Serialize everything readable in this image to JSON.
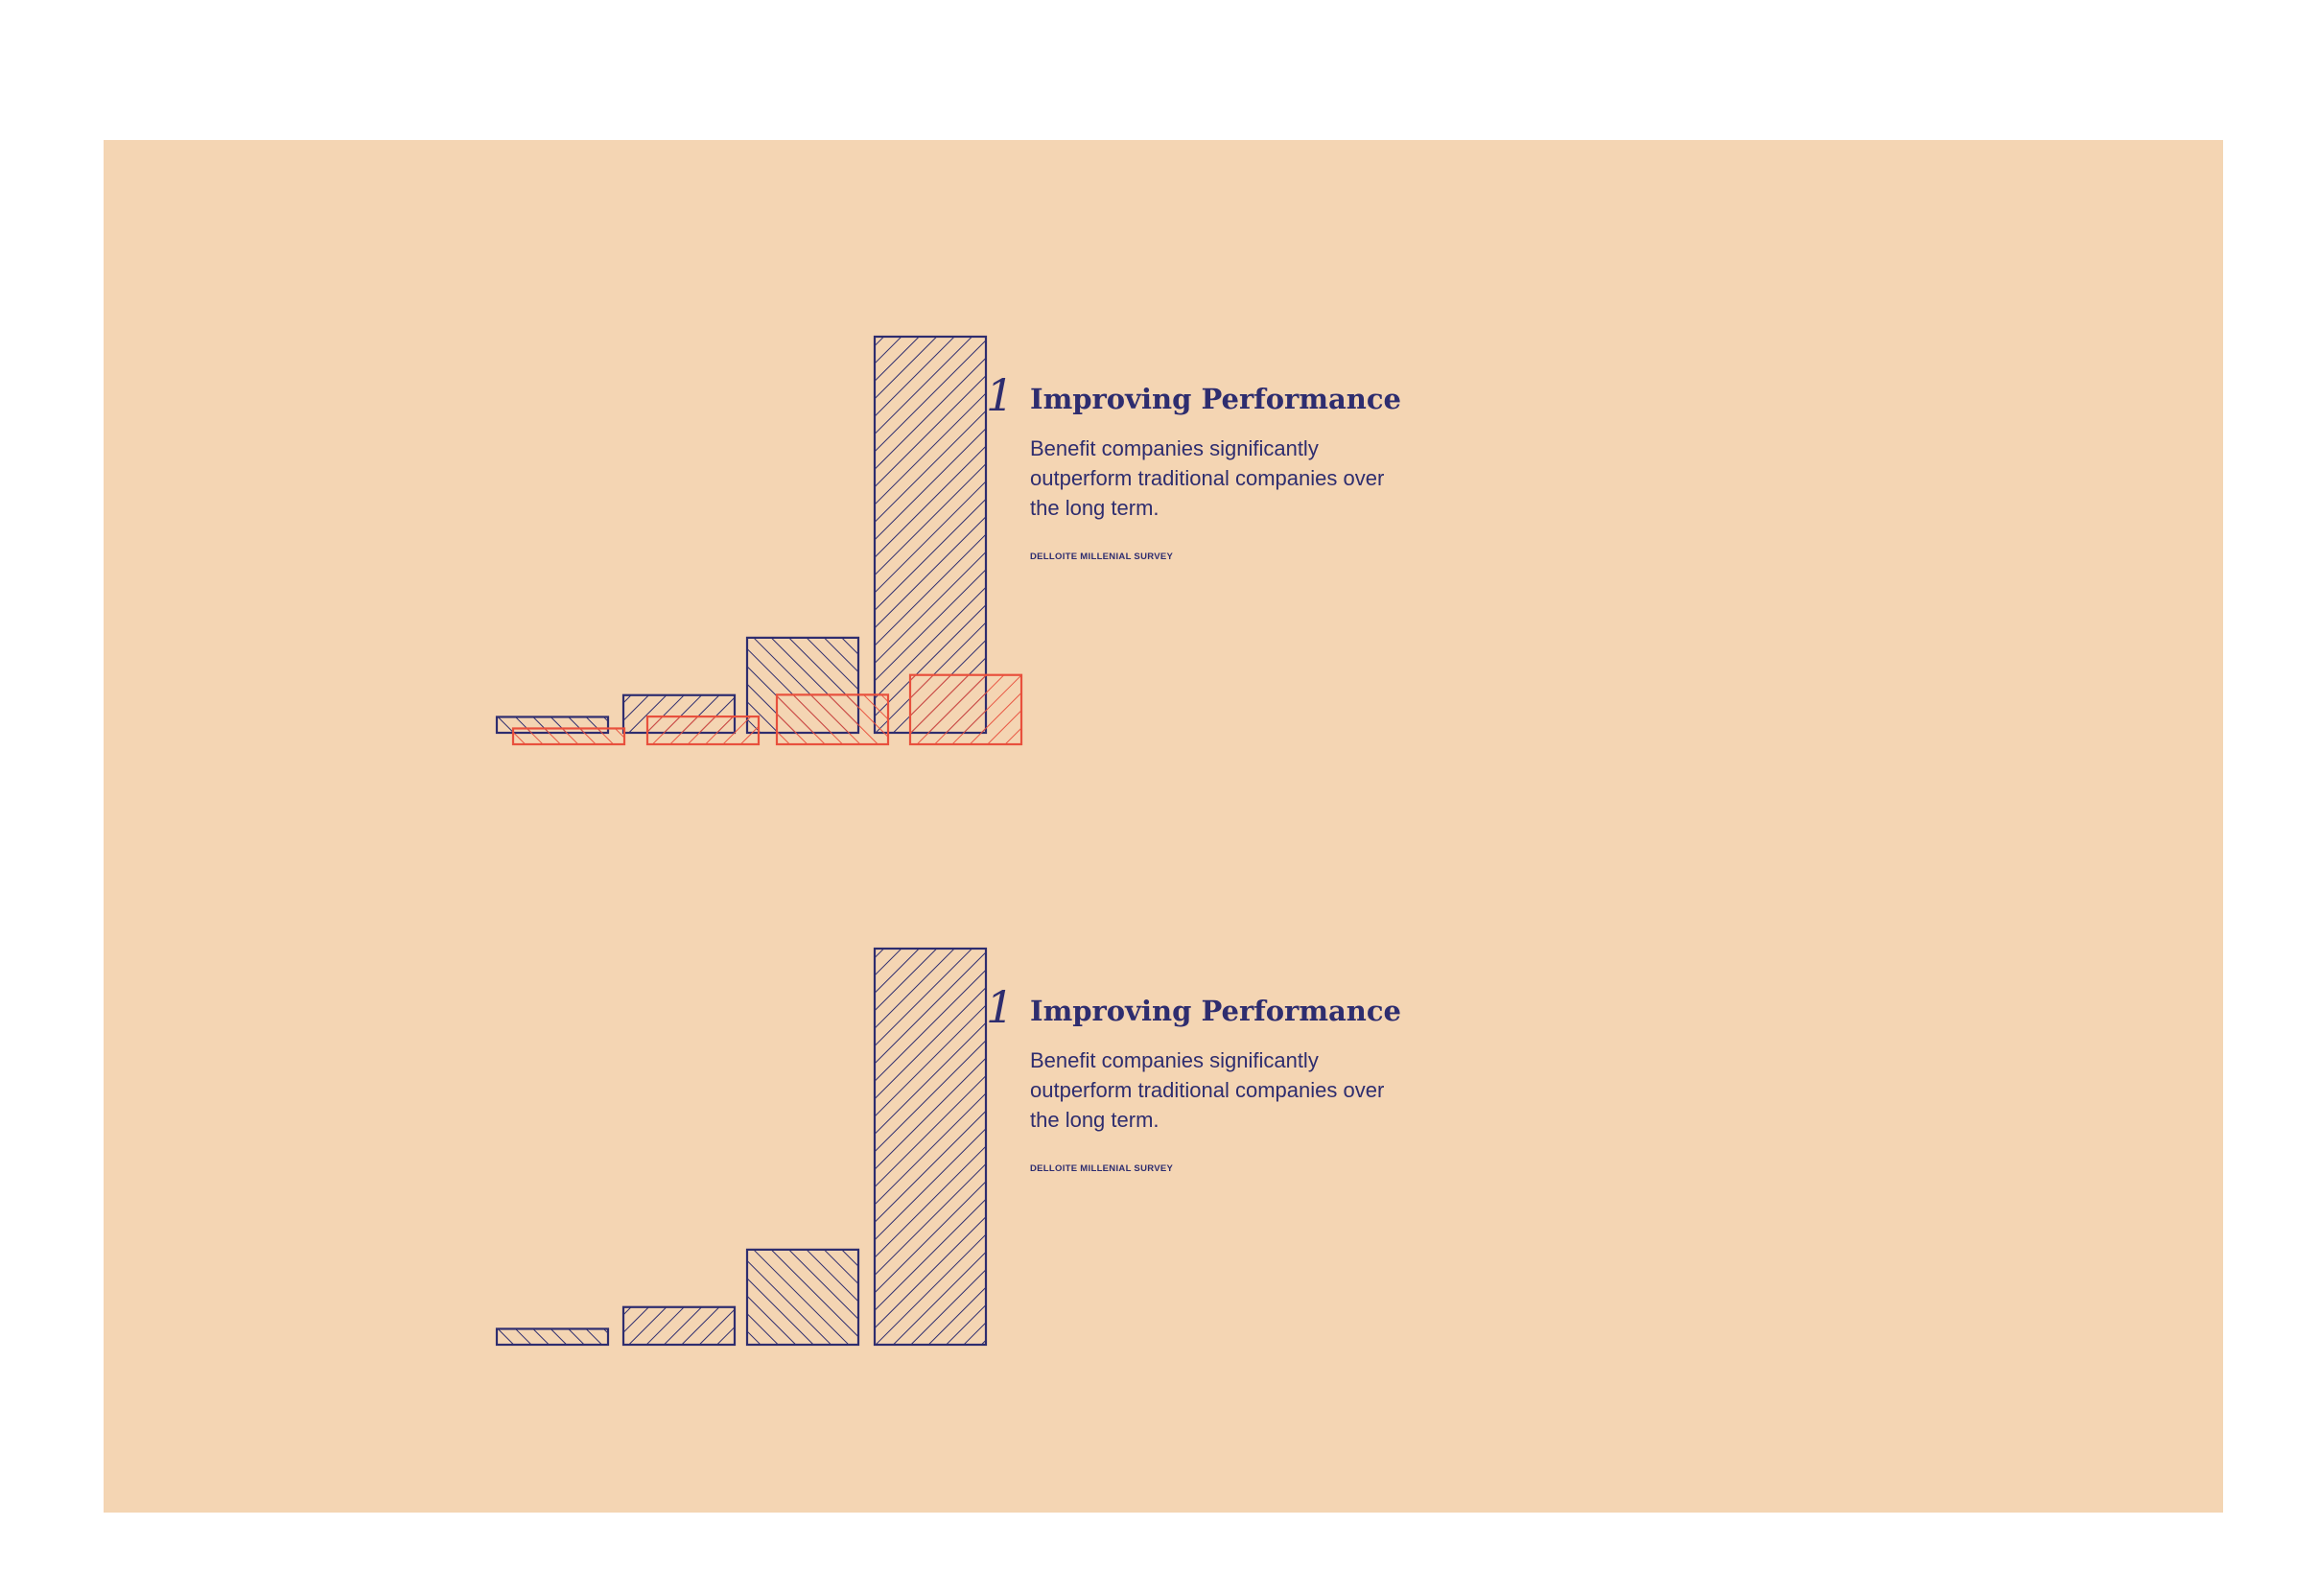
{
  "colors": {
    "background": "#f4d5b3",
    "primary": "#2e2d6f",
    "secondary": "#e8503d"
  },
  "sections": [
    {
      "number": "1",
      "title": "Improving Performance",
      "description": "Benefit companies significantly outperform traditional companies over the long term.",
      "source": "DELLOITE MILLENIAL SURVEY"
    },
    {
      "number": "1",
      "title": "Improving Performance",
      "description": "Benefit companies significantly outperform traditional companies over the long term.",
      "source": "DELLOITE MILLENIAL SURVEY"
    }
  ],
  "chart_data": [
    {
      "type": "bar",
      "categories": [
        "",
        "",
        "",
        ""
      ],
      "ylim": [
        0,
        100
      ],
      "grid": false,
      "series": [
        {
          "values": [
            4,
            9.5,
            24,
            100
          ],
          "color": "#2e2d6f"
        },
        {
          "values": [
            4,
            7,
            12.5,
            17.5
          ],
          "color": "#e8503d"
        }
      ]
    },
    {
      "type": "bar",
      "categories": [
        "",
        "",
        "",
        ""
      ],
      "ylim": [
        0,
        100
      ],
      "grid": false,
      "series": [
        {
          "values": [
            4,
            9.5,
            24,
            100
          ],
          "color": "#2e2d6f"
        }
      ]
    }
  ]
}
